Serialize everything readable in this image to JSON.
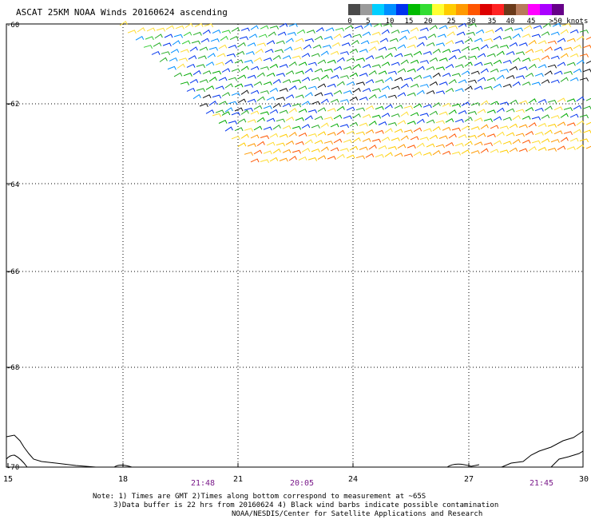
{
  "title": "ASCAT 25KM NOAA Winds 20160624 ascending",
  "legend": {
    "colors": [
      "#4a4a4a",
      "#9a9a9a",
      "#00cfff",
      "#008fff",
      "#0033ee",
      "#00bb00",
      "#33dd33",
      "#ffff33",
      "#ffcc00",
      "#ff9900",
      "#ff5500",
      "#dd0000",
      "#ff2222",
      "#6a3a1a",
      "#b77a5a",
      "#ff00ff",
      "#aa00ff",
      "#660088"
    ],
    "labels": [
      "0",
      "5",
      "10",
      "15",
      "20",
      "25",
      "30",
      "35",
      "40",
      "45",
      ">50 knots"
    ]
  },
  "lat_labels": [
    "-60",
    "-62",
    "-64",
    "-66",
    "-68",
    "-70"
  ],
  "lon_labels": [
    "15",
    "18",
    "21",
    "24",
    "27",
    "30"
  ],
  "time_labels": [
    "21:48",
    "20:05",
    "21:45"
  ],
  "notes": [
    "Note: 1) Times are GMT 2)Times along bottom correspond to measurement at ~65S",
    "3)Data buffer is 22 hrs from 20160624 4) Black wind barbs indicate possible contamination",
    "NOAA/NESDIS/Center for Satellite Applications and Research"
  ]
}
